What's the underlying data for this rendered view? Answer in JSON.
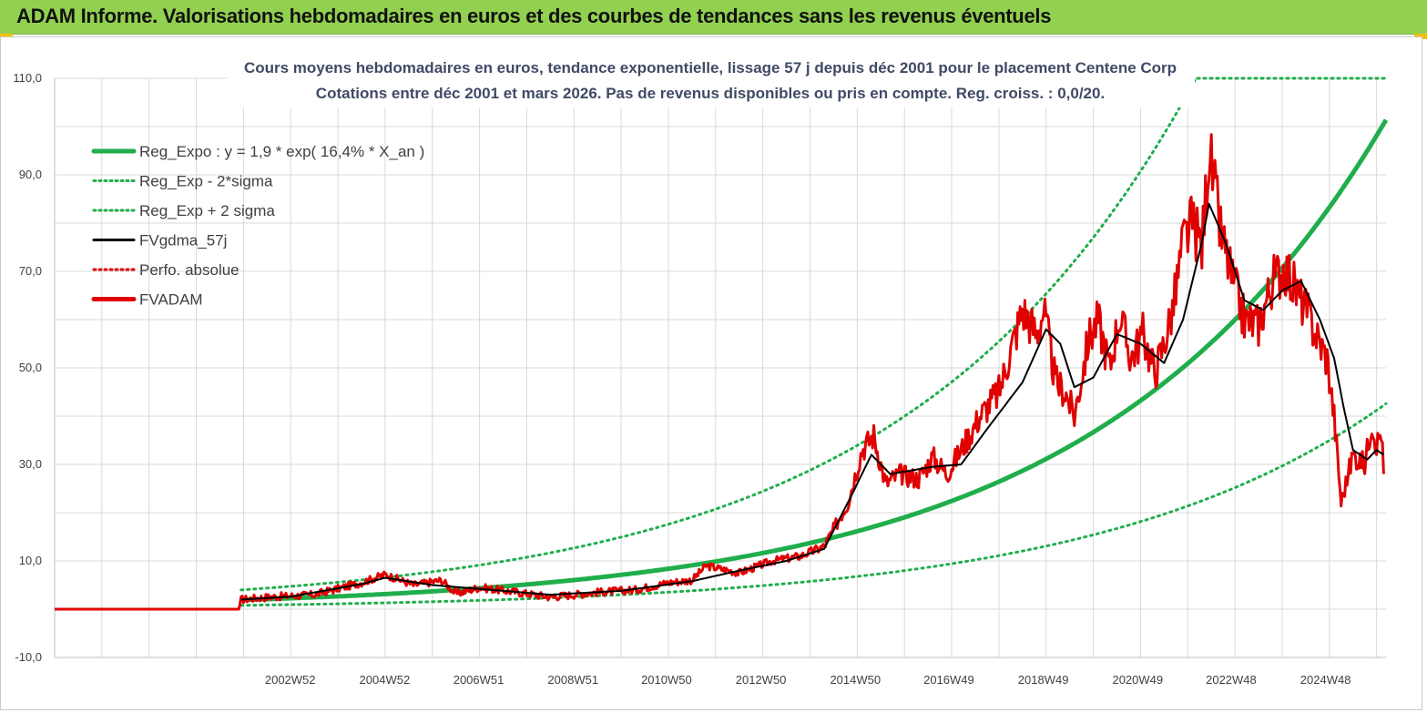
{
  "header": {
    "title": "ADAM Informe. Valorisations hebdomadaires en euros et des courbes de tendances sans les revenus éventuels",
    "background": "#92d050"
  },
  "chart_data": {
    "type": "line",
    "title": "Cours moyens hebdomadaires en euros, tendance exponentielle, lissage 57 j depuis déc 2001 pour le placement Centene Corp",
    "subtitle": "Cotations entre déc 2001 et mars 2026.  Pas de revenus disponibles ou pris en compte. Reg. croiss. : 0,0/20.",
    "ylim": [
      -10,
      110
    ],
    "y_ticks": [
      "110,0",
      "90,0",
      "70,0",
      "50,0",
      "30,0",
      "10,0",
      "-10,0"
    ],
    "y_tick_values": [
      110,
      90,
      70,
      50,
      30,
      10,
      -10
    ],
    "x_tick_labels": [
      "2002W52",
      "2004W52",
      "2006W51",
      "2008W51",
      "2010W50",
      "2012W50",
      "2014W50",
      "2016W49",
      "2018W49",
      "2020W49",
      "2022W48",
      "2024W48"
    ],
    "x_tick_years": [
      2002.99,
      2004.99,
      2006.98,
      2008.98,
      2010.96,
      2012.96,
      2014.96,
      2016.94,
      2018.94,
      2020.94,
      2022.92,
      2024.92
    ],
    "x_range_years": [
      1998.0,
      2026.2
    ],
    "grid": true,
    "legend_position": "top-left",
    "legend": [
      {
        "label": "Reg_Expo : y = 1,9 * exp( 16,4% *  X_an )",
        "style": "thick",
        "color": "#1fae4b"
      },
      {
        "label": "Reg_Exp - 2*sigma",
        "style": "dotted",
        "color": "#1fae4b"
      },
      {
        "label": "Reg_Exp + 2 sigma",
        "style": "dotted",
        "color": "#1fae4b"
      },
      {
        "label": "FVgdma_57j",
        "style": "solid",
        "color": "#000000"
      },
      {
        "label": "Perfo. absolue",
        "style": "dotted",
        "color": "#e00000"
      },
      {
        "label": "FVADAM",
        "style": "thick",
        "color": "#e00000"
      }
    ],
    "regression": {
      "a": 1.9,
      "rate": 0.164,
      "start_year": 2001.95,
      "lower_factor": 0.42,
      "upper_factor": 2.1
    },
    "series": [
      {
        "name": "FVADAM",
        "color": "#e00000",
        "x": [
          1998.0,
          2001.9,
          2001.95,
          2002.5,
          2003.5,
          2004.5,
          2005.0,
          2005.6,
          2006.2,
          2006.5,
          2007.0,
          2007.8,
          2008.5,
          2009.5,
          2010.3,
          2011.0,
          2011.5,
          2011.8,
          2012.5,
          2013.2,
          2013.8,
          2014.3,
          2014.8,
          2015.1,
          2015.35,
          2015.6,
          2015.9,
          2016.3,
          2016.6,
          2016.9,
          2017.2,
          2017.6,
          2018.0,
          2018.5,
          2018.8,
          2018.95,
          2019.2,
          2019.4,
          2019.6,
          2019.9,
          2020.1,
          2020.35,
          2020.55,
          2020.8,
          2021.05,
          2021.3,
          2021.5,
          2021.7,
          2021.9,
          2022.1,
          2022.3,
          2022.45,
          2022.7,
          2022.95,
          2023.2,
          2023.5,
          2023.8,
          2024.05,
          2024.3,
          2024.5,
          2024.8,
          2024.95,
          2025.1,
          2025.25,
          2025.5,
          2025.75,
          2025.9,
          2026.0,
          2026.1,
          2026.15
        ],
        "values": [
          0,
          0,
          2.0,
          2.5,
          3.0,
          5.5,
          7.2,
          5.0,
          6.0,
          3.2,
          4.5,
          3.5,
          2.5,
          3.5,
          4.0,
          5.5,
          6.0,
          9.0,
          7.5,
          10.0,
          11.0,
          13.0,
          22.0,
          33.0,
          36.0,
          26.0,
          28.0,
          27.0,
          31.5,
          28.0,
          33.0,
          40.0,
          45.0,
          62.0,
          57.0,
          62.0,
          47.0,
          45.0,
          40.0,
          56.0,
          60.0,
          50.0,
          61.0,
          52.0,
          57.0,
          49.0,
          55.0,
          63.0,
          76.0,
          80.0,
          75.0,
          95.0,
          78.0,
          68.0,
          60.0,
          59.0,
          68.0,
          71.0,
          66.0,
          62.0,
          55.0,
          52.0,
          40.0,
          22.0,
          32.0,
          30.0,
          39.0,
          34.0,
          37.0,
          28.0
        ]
      },
      {
        "name": "FVgdma_57j",
        "color": "#000000",
        "x": [
          2001.95,
          2003.0,
          2004.5,
          2005.0,
          2006.0,
          2007.0,
          2008.5,
          2010.0,
          2011.5,
          2012.5,
          2013.5,
          2014.3,
          2014.9,
          2015.3,
          2015.7,
          2016.6,
          2017.2,
          2017.8,
          2018.5,
          2019.0,
          2019.3,
          2019.6,
          2020.0,
          2020.5,
          2021.0,
          2021.5,
          2021.9,
          2022.3,
          2022.45,
          2022.8,
          2023.2,
          2023.6,
          2024.0,
          2024.4,
          2024.8,
          2025.1,
          2025.3,
          2025.5,
          2025.8,
          2026.0,
          2026.15
        ],
        "values": [
          2.0,
          2.6,
          5.2,
          6.5,
          5.0,
          4.2,
          3.0,
          3.8,
          5.8,
          8.0,
          10.0,
          12.5,
          24.0,
          32.0,
          28.0,
          29.5,
          30.0,
          38.0,
          47.0,
          58.0,
          55.0,
          46.0,
          48.0,
          57.0,
          55.0,
          51.0,
          60.0,
          76.0,
          84.0,
          76.0,
          64.0,
          62.0,
          66.0,
          68.0,
          60.0,
          52.0,
          42.0,
          33.0,
          31.0,
          33.0,
          32.0
        ]
      }
    ]
  }
}
